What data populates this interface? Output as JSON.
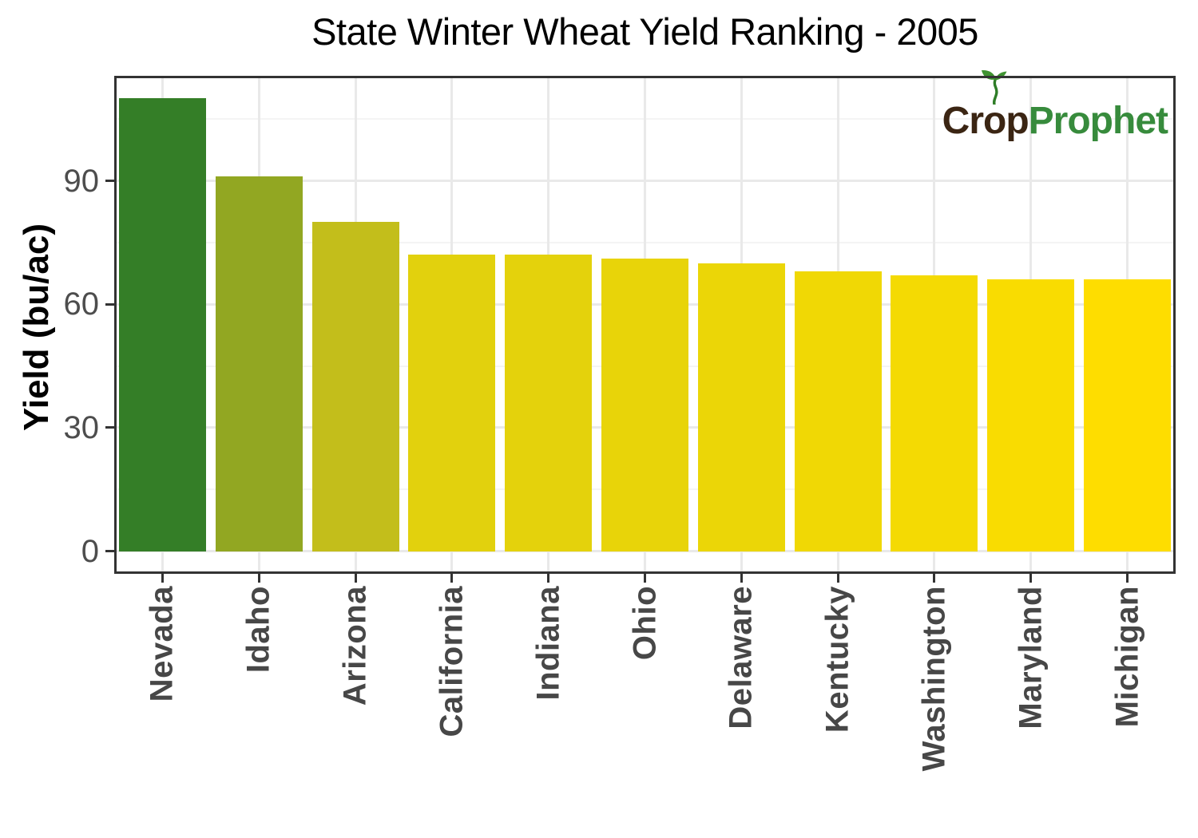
{
  "title": "State Winter Wheat Yield Ranking - 2005",
  "logo": {
    "part1_pre": "Cr",
    "part1_o": "o",
    "part1_post": "p",
    "part2": "Prophet",
    "part1_color": "#3b2513",
    "part2_color": "#378b3c",
    "sprout_color": "#3f9331",
    "stem_color": "#2e7d27"
  },
  "y_axis": {
    "label": "Yield (bu/ac)",
    "tick_labels": [
      "0",
      "30",
      "60",
      "90"
    ]
  },
  "chart_data": {
    "type": "bar",
    "title": "State Winter Wheat Yield Ranking - 2005",
    "xlabel": "",
    "ylabel": "Yield (bu/ac)",
    "categories": [
      "Nevada",
      "Idaho",
      "Arizona",
      "California",
      "Indiana",
      "Ohio",
      "Delaware",
      "Kentucky",
      "Washington",
      "Maryland",
      "Michigan"
    ],
    "values": [
      110,
      91,
      80,
      72,
      72,
      71,
      70,
      68,
      67,
      66,
      66
    ],
    "bar_colors": [
      "#347e27",
      "#92a722",
      "#c3be1b",
      "#e2d10d",
      "#e4d20c",
      "#e8d409",
      "#ebd607",
      "#f0d805",
      "#f4da03",
      "#f9dc01",
      "#fedd00"
    ],
    "yticks": [
      0,
      30,
      60,
      90
    ],
    "minor_yticks": [
      15,
      45,
      75,
      105
    ],
    "ylim": [
      -5.5,
      115.5
    ],
    "grid": true,
    "legend": false,
    "units": "bu/ac"
  },
  "style": {
    "grid_major_color": "#e9e9e9",
    "grid_minor_color": "#f4f4f4",
    "axis_color": "#333333",
    "tick_label_color": "#4d4d4d",
    "x_label_color": "#474747",
    "background": "#ffffff"
  }
}
